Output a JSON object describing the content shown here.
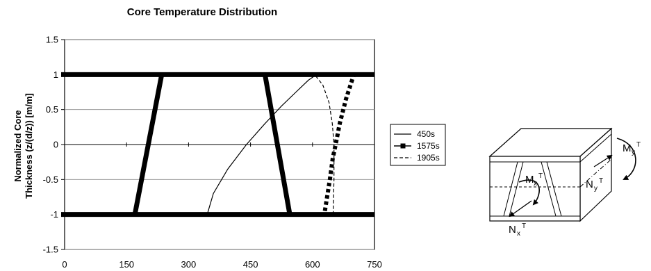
{
  "chart_data": {
    "type": "line",
    "title": "Core Temperature Distribution",
    "ylabel_lines": [
      "Normalized Core",
      "Thickness (z/(d/z)) [m/m]"
    ],
    "xlim": [
      0,
      750
    ],
    "ylim": [
      -1.5,
      1.5
    ],
    "x_ticks": [
      0,
      150,
      300,
      450,
      600,
      750
    ],
    "y_ticks": [
      1.5,
      1,
      0.5,
      0,
      -0.5,
      -1,
      -1.5
    ],
    "y_tick_labels": [
      "1.5",
      "1",
      "0.5",
      "0",
      "-0.5",
      "-1",
      "-1.5"
    ],
    "grid": "horizontal",
    "legend_position": "right",
    "face_sheet_lines": [
      1,
      -1
    ],
    "core_wall_lines": [
      {
        "x": [
          170,
          235
        ],
        "y": [
          -1,
          1
        ]
      },
      {
        "x": [
          485,
          545
        ],
        "y": [
          1,
          -1
        ]
      }
    ],
    "series": [
      {
        "name": "450s",
        "style": "solid",
        "x": [
          345,
          360,
          395,
          440,
          485,
          525,
          560,
          590,
          610
        ],
        "y": [
          -1,
          -0.7,
          -0.35,
          0,
          0.3,
          0.55,
          0.75,
          0.92,
          1
        ]
      },
      {
        "name": "1575s",
        "style": "square-dots",
        "x": [
          630,
          642,
          649,
          656,
          666,
          681,
          700
        ],
        "y": [
          -0.95,
          -0.5,
          -0.2,
          0,
          0.3,
          0.65,
          1
        ]
      },
      {
        "name": "1905s",
        "style": "dashed",
        "x": [
          650,
          652,
          652,
          648,
          640,
          625,
          605
        ],
        "y": [
          -1,
          -0.5,
          0,
          0.3,
          0.6,
          0.85,
          1
        ]
      }
    ]
  },
  "diagram": {
    "labels": {
      "Mx": {
        "main": "M",
        "sub": "x",
        "sup": "T"
      },
      "Nx": {
        "main": "N",
        "sub": "x",
        "sup": "T"
      },
      "My": {
        "main": "M",
        "sub": "y",
        "sup": "T"
      },
      "Ny": {
        "main": "N",
        "sub": "y",
        "sup": "T"
      }
    }
  }
}
